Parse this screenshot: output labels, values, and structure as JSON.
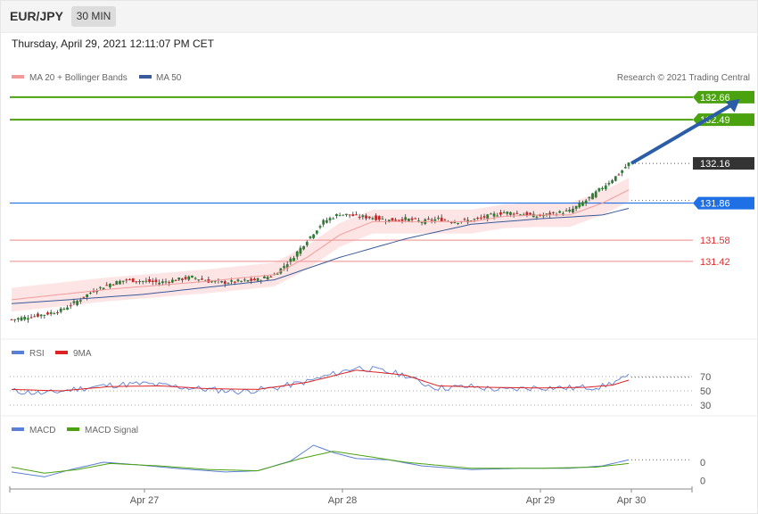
{
  "header": {
    "pair": "EUR/JPY",
    "timeframe": "30 MIN",
    "datetime": "Thursday, April 29, 2021 12:11:07 PM CET"
  },
  "colors": {
    "up": "#2e7d32",
    "down": "#c62828",
    "bollinger_fill": "#fde0e0",
    "ma20": "#f29a9a",
    "ma50": "#3a5a9a",
    "resistance": "#4aa30e",
    "current": "#333333",
    "pivot": "#1f6fe5",
    "support": "#e03030",
    "arrow": "#2b5ea7",
    "rsi": "#5a7fd6",
    "rsi_9ma": "#dd2222",
    "macd": "#5a7fd6",
    "macd_signal": "#4aa30e"
  },
  "chart_data": [
    {
      "type": "candlestick",
      "title": "EUR/JPY",
      "legend": [
        {
          "label": "MA 20 + Bollinger Bands",
          "color": "#f29a9a"
        },
        {
          "label": "MA 50",
          "color": "#3a5a9a"
        }
      ],
      "credit": "Research © 2021 Trading Central",
      "legend_position": "top-left",
      "ylim": [
        130.9,
        132.72
      ],
      "x_ticks": [
        "Apr 27",
        "Apr 28",
        "Apr 29",
        "Apr 30"
      ],
      "levels": [
        {
          "label": "132.66",
          "value": 132.66,
          "kind": "resistance"
        },
        {
          "label": "132.49",
          "value": 132.49,
          "kind": "resistance"
        },
        {
          "label": "132.16",
          "value": 132.16,
          "kind": "current"
        },
        {
          "label": "131.86",
          "value": 131.86,
          "kind": "pivot"
        },
        {
          "label": "131.58",
          "value": 131.58,
          "kind": "support"
        },
        {
          "label": "131.42",
          "value": 131.42,
          "kind": "support"
        }
      ],
      "close_trend": [
        [
          0,
          130.98
        ],
        [
          5,
          131.0
        ],
        [
          10,
          131.02
        ],
        [
          15,
          131.05
        ],
        [
          20,
          131.12
        ],
        [
          25,
          131.2
        ],
        [
          30,
          131.25
        ],
        [
          35,
          131.28
        ],
        [
          40,
          131.27
        ],
        [
          45,
          131.26
        ],
        [
          50,
          131.28
        ],
        [
          55,
          131.3
        ],
        [
          60,
          131.27
        ],
        [
          65,
          131.26
        ],
        [
          70,
          131.27
        ],
        [
          75,
          131.28
        ],
        [
          80,
          131.32
        ],
        [
          85,
          131.43
        ],
        [
          90,
          131.58
        ],
        [
          95,
          131.72
        ],
        [
          100,
          131.78
        ],
        [
          105,
          131.76
        ],
        [
          110,
          131.75
        ],
        [
          115,
          131.73
        ],
        [
          120,
          131.74
        ],
        [
          125,
          131.72
        ],
        [
          130,
          131.74
        ],
        [
          135,
          131.72
        ],
        [
          140,
          131.73
        ],
        [
          145,
          131.76
        ],
        [
          150,
          131.79
        ],
        [
          155,
          131.78
        ],
        [
          160,
          131.76
        ],
        [
          165,
          131.78
        ],
        [
          170,
          131.8
        ],
        [
          175,
          131.88
        ],
        [
          180,
          131.98
        ],
        [
          185,
          132.08
        ],
        [
          188,
          132.16
        ]
      ],
      "ma50": [
        [
          0,
          131.1
        ],
        [
          40,
          131.17
        ],
        [
          80,
          131.28
        ],
        [
          100,
          131.45
        ],
        [
          120,
          131.59
        ],
        [
          140,
          131.7
        ],
        [
          160,
          131.74
        ],
        [
          180,
          131.77
        ],
        [
          188,
          131.82
        ]
      ],
      "ma20": [
        [
          0,
          131.13
        ],
        [
          30,
          131.21
        ],
        [
          60,
          131.27
        ],
        [
          80,
          131.32
        ],
        [
          90,
          131.45
        ],
        [
          100,
          131.62
        ],
        [
          110,
          131.72
        ],
        [
          120,
          131.72
        ],
        [
          130,
          131.72
        ],
        [
          140,
          131.72
        ],
        [
          150,
          131.76
        ],
        [
          160,
          131.77
        ],
        [
          170,
          131.77
        ],
        [
          180,
          131.86
        ],
        [
          188,
          131.96
        ]
      ],
      "bb_width": 0.09,
      "forecast_arrow": {
        "from": [
          188,
          132.16
        ],
        "to": [
          205,
          132.66
        ]
      }
    },
    {
      "type": "line",
      "legend": [
        {
          "label": "RSI",
          "color": "#5a7fd6"
        },
        {
          "label": "9MA",
          "color": "#dd2222"
        }
      ],
      "ylim": [
        20,
        100
      ],
      "y_ticks": [
        "70",
        "50",
        "30"
      ],
      "y_tick_values": [
        70,
        50,
        30
      ],
      "rsi": [
        [
          0,
          50
        ],
        [
          10,
          46
        ],
        [
          20,
          53
        ],
        [
          30,
          58
        ],
        [
          40,
          60
        ],
        [
          50,
          56
        ],
        [
          60,
          52
        ],
        [
          70,
          49
        ],
        [
          80,
          54
        ],
        [
          90,
          63
        ],
        [
          100,
          76
        ],
        [
          105,
          83
        ],
        [
          110,
          80
        ],
        [
          120,
          72
        ],
        [
          125,
          61
        ],
        [
          130,
          54
        ],
        [
          140,
          56
        ],
        [
          150,
          51
        ],
        [
          160,
          55
        ],
        [
          170,
          54
        ],
        [
          180,
          56
        ],
        [
          185,
          65
        ],
        [
          188,
          69
        ]
      ],
      "rsi_ma": [
        [
          0,
          52
        ],
        [
          15,
          50
        ],
        [
          30,
          56
        ],
        [
          45,
          57
        ],
        [
          60,
          53
        ],
        [
          75,
          52
        ],
        [
          90,
          62
        ],
        [
          105,
          79
        ],
        [
          120,
          72
        ],
        [
          130,
          57
        ],
        [
          145,
          55
        ],
        [
          160,
          54
        ],
        [
          175,
          55
        ],
        [
          183,
          58
        ],
        [
          188,
          65
        ]
      ]
    },
    {
      "type": "line",
      "legend": [
        {
          "label": "MACD",
          "color": "#5a7fd6"
        },
        {
          "label": "MACD Signal",
          "color": "#4aa30e"
        }
      ],
      "ylim": [
        -0.12,
        0.32
      ],
      "y_ticks": [
        "0",
        "0"
      ],
      "y_tick_values": [
        0.1,
        -0.05
      ],
      "macd": [
        [
          0,
          0.02
        ],
        [
          10,
          -0.02
        ],
        [
          18,
          0.04
        ],
        [
          28,
          0.1
        ],
        [
          38,
          0.08
        ],
        [
          50,
          0.05
        ],
        [
          65,
          0.02
        ],
        [
          75,
          0.03
        ],
        [
          85,
          0.11
        ],
        [
          92,
          0.24
        ],
        [
          98,
          0.18
        ],
        [
          105,
          0.13
        ],
        [
          115,
          0.12
        ],
        [
          125,
          0.07
        ],
        [
          140,
          0.04
        ],
        [
          155,
          0.05
        ],
        [
          170,
          0.05
        ],
        [
          180,
          0.07
        ],
        [
          188,
          0.12
        ]
      ],
      "signal": [
        [
          0,
          0.06
        ],
        [
          10,
          0.01
        ],
        [
          20,
          0.04
        ],
        [
          30,
          0.09
        ],
        [
          45,
          0.07
        ],
        [
          60,
          0.04
        ],
        [
          75,
          0.03
        ],
        [
          88,
          0.13
        ],
        [
          98,
          0.19
        ],
        [
          108,
          0.15
        ],
        [
          120,
          0.1
        ],
        [
          140,
          0.05
        ],
        [
          160,
          0.05
        ],
        [
          178,
          0.06
        ],
        [
          188,
          0.09
        ]
      ]
    }
  ]
}
